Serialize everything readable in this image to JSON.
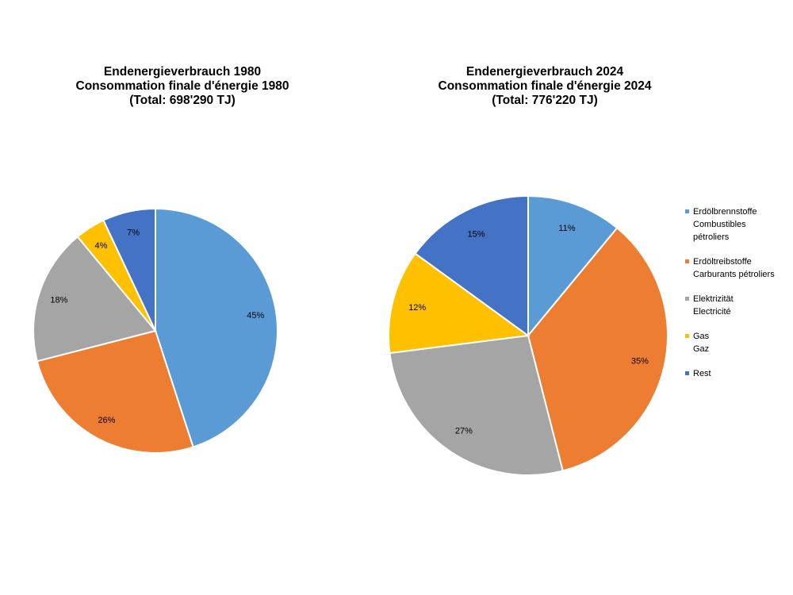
{
  "chart_data": [
    {
      "type": "pie",
      "title": [
        "Endenergieverbrauch 1980",
        "Consommation finale d'énergie 1980",
        "(Total: 698'290 TJ)"
      ],
      "categories": [
        "Erdölbrennstoffe Combustibles pétroliers",
        "Erdöltreibstoffe Carburants pétroliers",
        "Elektrizität Electricité",
        "Gas Gaz",
        "Rest"
      ],
      "values": [
        45,
        26,
        18,
        4,
        7
      ],
      "labels": [
        "45%",
        "26%",
        "18%",
        "4%",
        "7%"
      ],
      "colors": [
        "#5b9bd5",
        "#ed7d31",
        "#a5a5a5",
        "#ffc000",
        "#4472c4"
      ]
    },
    {
      "type": "pie",
      "title": [
        "Endenergieverbrauch 2024",
        "Consommation finale d'énergie 2024",
        "(Total: 776'220 TJ)"
      ],
      "categories": [
        "Erdölbrennstoffe Combustibles pétroliers",
        "Erdöltreibstoffe Carburants pétroliers",
        "Elektrizität Electricité",
        "Gas Gaz",
        "Rest"
      ],
      "values": [
        11,
        35,
        27,
        12,
        15
      ],
      "labels": [
        "11%",
        "35%",
        "27%",
        "12%",
        "15%"
      ],
      "colors": [
        "#5b9bd5",
        "#ed7d31",
        "#a5a5a5",
        "#ffc000",
        "#4472c4"
      ]
    }
  ],
  "legend": [
    {
      "lines": [
        "Erdölbrennstoffe",
        "Combustibles",
        "pétroliers"
      ],
      "color": "#5b9bd5"
    },
    {
      "lines": [
        "Erdöltreibstoffe",
        "Carburants pétroliers"
      ],
      "color": "#ed7d31"
    },
    {
      "lines": [
        "Elektrizität",
        "Electricité"
      ],
      "color": "#a5a5a5"
    },
    {
      "lines": [
        "Gas",
        "Gaz"
      ],
      "color": "#ffc000"
    },
    {
      "lines": [
        "Rest"
      ],
      "color": "#4472c4"
    }
  ]
}
